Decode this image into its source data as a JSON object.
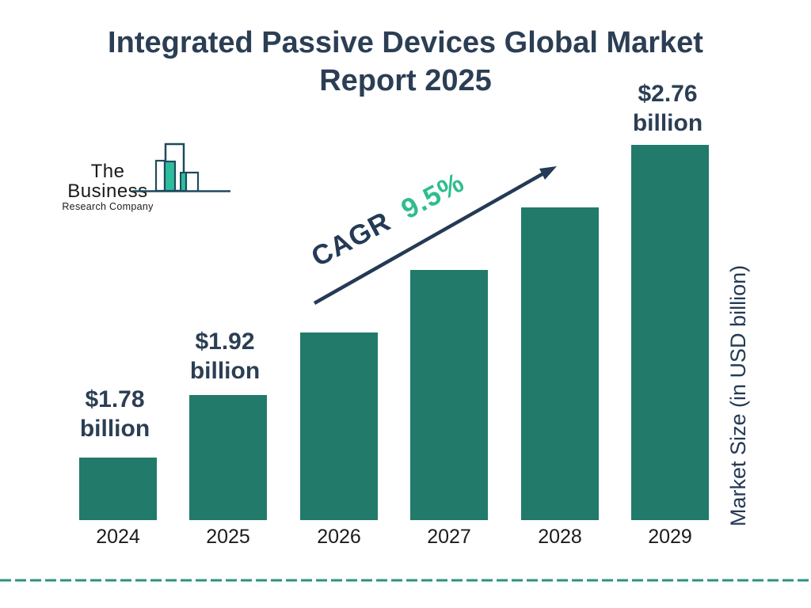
{
  "title": {
    "line1": "Integrated Passive Devices Global Market",
    "line2": "Report 2025"
  },
  "logo": {
    "company_line1": "The Business",
    "company_line2": "Research Company"
  },
  "chart_data": {
    "type": "bar",
    "title": "Integrated Passive Devices Global Market Report 2025",
    "categories": [
      "2024",
      "2025",
      "2026",
      "2027",
      "2028",
      "2029"
    ],
    "values": [
      1.78,
      1.92,
      2.1,
      2.3,
      2.52,
      2.76
    ],
    "labeled_points": [
      {
        "category": "2024",
        "value": 1.78,
        "label_line1": "$1.78",
        "label_line2": "billion"
      },
      {
        "category": "2025",
        "value": 1.92,
        "label_line1": "$1.92",
        "label_line2": "billion"
      },
      {
        "category": "2029",
        "value": 2.76,
        "label_line1": "$2.76",
        "label_line2": "billion"
      }
    ],
    "cagr": {
      "label": "CAGR",
      "value": "9.5%"
    },
    "ylabel": "Market Size (in USD billion)",
    "xlabel": "",
    "legend": false,
    "grid": false,
    "units": "USD billion"
  },
  "colors": {
    "bar": "#227a6a",
    "title_text": "#2b3e54",
    "arrow_navy": "#243a55",
    "cagr_green": "#2ebd8f",
    "logo_green": "#2ebd9c",
    "logo_outline": "#1f4a5e",
    "dashed_line": "#2b9186",
    "year_text": "#1c1c1c",
    "background": "#ffffff"
  }
}
